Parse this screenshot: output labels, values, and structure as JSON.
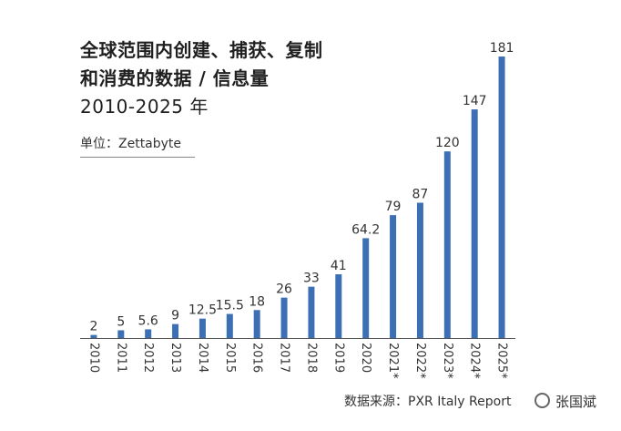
{
  "header": {
    "title_line1": "全球范围内创建、捕获、复制",
    "title_line2": "和消费的数据 / 信息量",
    "title_line3": "2010-2025 年",
    "unit": "单位：Zettabyte"
  },
  "footer": {
    "source": "数据来源：PXR Italy Report",
    "watermark": "张国斌",
    "watermark_icon": "wechat-icon"
  },
  "colors": {
    "bar": "#3d6fb5",
    "axis": "#555555"
  },
  "chart_data": {
    "type": "bar",
    "title": "全球范围内创建、捕获、复制和消费的数据 / 信息量 2010-2025 年",
    "ylabel": "单位：Zettabyte",
    "categories": [
      "2010",
      "2011",
      "2012",
      "2013",
      "2014",
      "2015",
      "2016",
      "2017",
      "2018",
      "2019",
      "2020",
      "2021*",
      "2022*",
      "2023*",
      "2024*",
      "2025*"
    ],
    "values": [
      2,
      5,
      5.6,
      9,
      12.5,
      15.5,
      18,
      26,
      33,
      41,
      64.2,
      79,
      87,
      120,
      147,
      181
    ],
    "labels": [
      "2",
      "5",
      "5.6",
      "9",
      "12.5",
      "15.5",
      "18",
      "26",
      "33",
      "41",
      "64.2",
      "79",
      "87",
      "120",
      "147",
      "181"
    ],
    "ylim": [
      0,
      181
    ],
    "grid": false
  }
}
